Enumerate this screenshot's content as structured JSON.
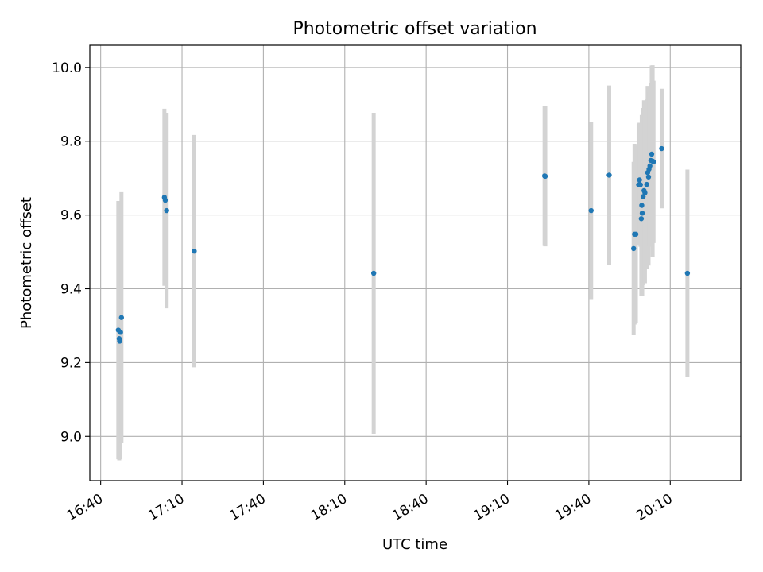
{
  "chart_data": {
    "type": "scatter",
    "title": "Photometric offset variation",
    "xlabel": "UTC time",
    "ylabel": "Photometric offset",
    "x_axis_type": "time",
    "xlim": [
      "16:36",
      "20:36"
    ],
    "ylim": [
      8.88,
      10.06
    ],
    "grid": true,
    "x_ticks": [
      "16:40",
      "17:10",
      "17:40",
      "18:10",
      "18:40",
      "19:10",
      "19:40",
      "20:10"
    ],
    "y_ticks": [
      "9.0",
      "9.2",
      "9.4",
      "9.6",
      "9.8",
      "10.0"
    ],
    "colors": {
      "point": "#1f77b4",
      "errorbar": "#d3d3d3",
      "grid": "#b0b0b0"
    },
    "points": [
      {
        "x": "16:46:30",
        "y": 9.288,
        "err": 0.35
      },
      {
        "x": "16:46:50",
        "y": 9.265,
        "err": 0.33
      },
      {
        "x": "16:47:00",
        "y": 9.258,
        "err": 0.32
      },
      {
        "x": "16:47:20",
        "y": 9.282,
        "err": 0.3
      },
      {
        "x": "16:47:40",
        "y": 9.322,
        "err": 0.34
      },
      {
        "x": "17:03:30",
        "y": 9.648,
        "err": 0.24
      },
      {
        "x": "17:03:50",
        "y": 9.64,
        "err": 0.23
      },
      {
        "x": "17:04:20",
        "y": 9.612,
        "err": 0.265
      },
      {
        "x": "17:14:30",
        "y": 9.502,
        "err": 0.315
      },
      {
        "x": "18:20:40",
        "y": 9.442,
        "err": 0.435
      },
      {
        "x": "19:23:40",
        "y": 9.706,
        "err": 0.19
      },
      {
        "x": "19:23:55",
        "y": 9.705,
        "err": 0.19
      },
      {
        "x": "19:40:50",
        "y": 9.612,
        "err": 0.24
      },
      {
        "x": "19:47:30",
        "y": 9.708,
        "err": 0.243
      },
      {
        "x": "19:56:30",
        "y": 9.509,
        "err": 0.235
      },
      {
        "x": "19:56:50",
        "y": 9.548,
        "err": 0.245
      },
      {
        "x": "19:57:20",
        "y": 9.548,
        "err": 0.24
      },
      {
        "x": "19:58:20",
        "y": 9.682,
        "err": 0.165
      },
      {
        "x": "19:58:40",
        "y": 9.695,
        "err": 0.155
      },
      {
        "x": "19:59:00",
        "y": 9.682,
        "err": 0.168
      },
      {
        "x": "19:59:20",
        "y": 9.59,
        "err": 0.21
      },
      {
        "x": "19:59:30",
        "y": 9.626,
        "err": 0.245
      },
      {
        "x": "19:59:40",
        "y": 9.605,
        "err": 0.225
      },
      {
        "x": "20:00:00",
        "y": 9.65,
        "err": 0.24
      },
      {
        "x": "20:00:20",
        "y": 9.666,
        "err": 0.245
      },
      {
        "x": "20:00:40",
        "y": 9.66,
        "err": 0.245
      },
      {
        "x": "20:01:20",
        "y": 9.683,
        "err": 0.23
      },
      {
        "x": "20:01:40",
        "y": 9.715,
        "err": 0.235
      },
      {
        "x": "20:02:00",
        "y": 9.703,
        "err": 0.24
      },
      {
        "x": "20:02:10",
        "y": 9.724,
        "err": 0.21
      },
      {
        "x": "20:02:30",
        "y": 9.733,
        "err": 0.2
      },
      {
        "x": "20:02:50",
        "y": 9.748,
        "err": 0.21
      },
      {
        "x": "20:03:10",
        "y": 9.765,
        "err": 0.24
      },
      {
        "x": "20:03:30",
        "y": 9.746,
        "err": 0.26
      },
      {
        "x": "20:03:50",
        "y": 9.744,
        "err": 0.22
      },
      {
        "x": "20:06:50",
        "y": 9.78,
        "err": 0.162
      },
      {
        "x": "20:16:20",
        "y": 9.442,
        "err": 0.281
      }
    ]
  }
}
